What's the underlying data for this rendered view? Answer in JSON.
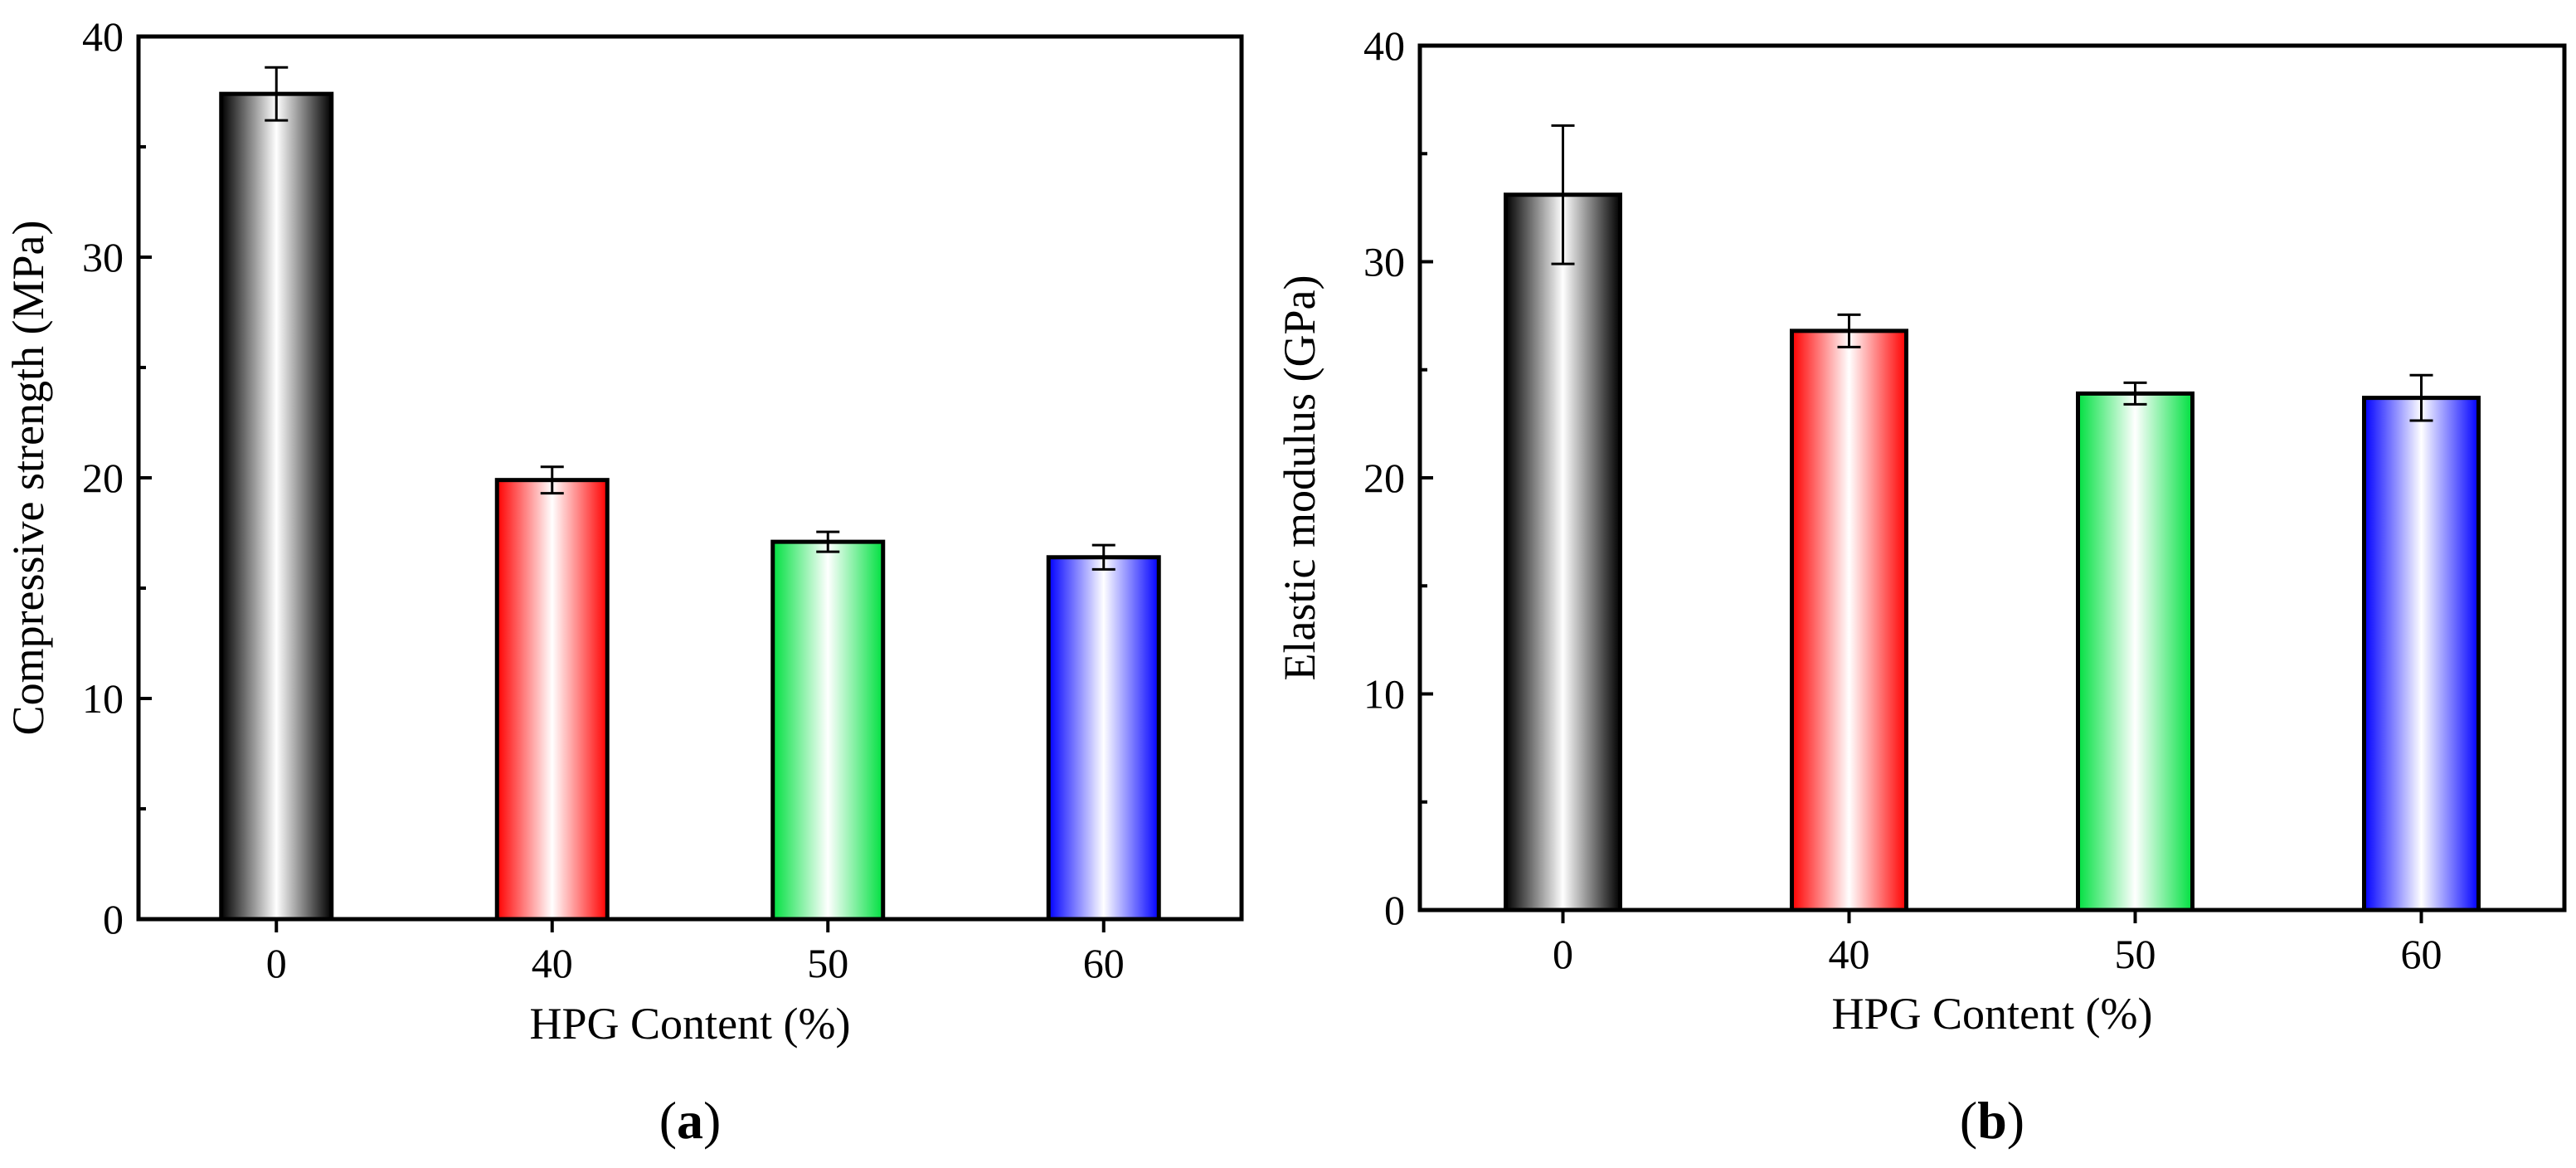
{
  "chart_data": [
    {
      "id": "a",
      "type": "bar",
      "panel_label_open": "(",
      "panel_label": "a",
      "panel_label_close": ")",
      "categories": [
        "0",
        "40",
        "50",
        "60"
      ],
      "values": [
        37.4,
        19.9,
        17.1,
        16.4
      ],
      "errors": [
        1.2,
        0.6,
        0.45,
        0.55
      ],
      "bar_colors": [
        "#000000",
        "#ff0000",
        "#00e040",
        "#0000ff"
      ],
      "xlabel": "HPG Content (%)",
      "ylabel": "Compressive strength (MPa)",
      "ylim": [
        0,
        40
      ],
      "yticks": [
        0,
        10,
        20,
        30,
        40
      ],
      "grid": false
    },
    {
      "id": "b",
      "type": "bar",
      "panel_label_open": "(",
      "panel_label": "b",
      "panel_label_close": ")",
      "categories": [
        "0",
        "40",
        "50",
        "60"
      ],
      "values": [
        33.1,
        26.8,
        23.9,
        23.7
      ],
      "errors": [
        3.2,
        0.75,
        0.5,
        1.05
      ],
      "bar_colors": [
        "#000000",
        "#ff0000",
        "#00e040",
        "#0000ff"
      ],
      "xlabel": "HPG Content (%)",
      "ylabel": "Elastic modulus (GPa)",
      "ylim": [
        0,
        40
      ],
      "yticks": [
        0,
        10,
        20,
        30,
        40
      ],
      "grid": false
    }
  ]
}
